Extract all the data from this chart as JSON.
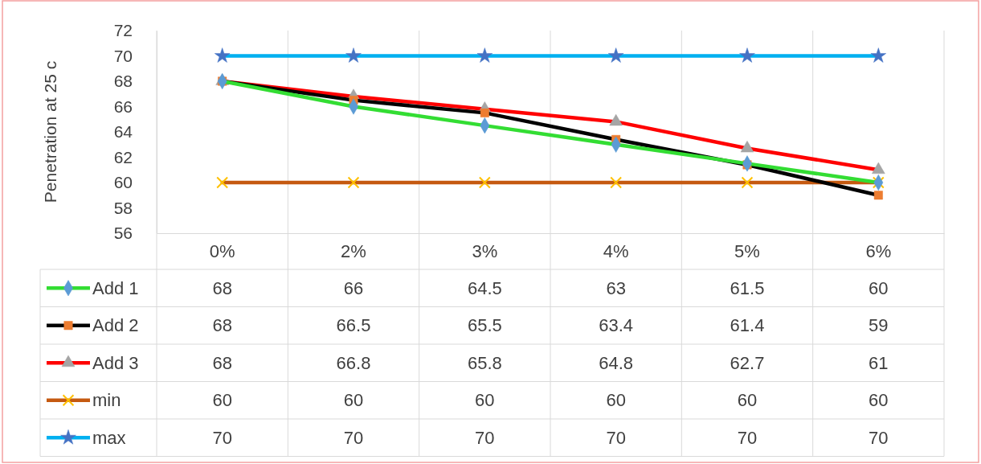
{
  "chart_data": {
    "type": "line",
    "ylabel": "Penetration at 25 c",
    "categories": [
      "0%",
      "2%",
      "3%",
      "4%",
      "5%",
      "6%"
    ],
    "ylim": [
      56,
      72
    ],
    "yticks": [
      56,
      58,
      60,
      62,
      64,
      66,
      68,
      70,
      72
    ],
    "grid": "x",
    "legend": "bottom",
    "data_labels": true,
    "series": [
      {
        "name": "Add 1",
        "color": "#33dd33",
        "marker": "diamond",
        "colors": [
          "#5b9bd5",
          "#5b9bd5",
          "#5b9bd5",
          "#5b9bd5",
          "#5b9bd5",
          "#5b9bd5"
        ],
        "values": [
          68,
          66,
          64.5,
          63,
          61.5,
          60
        ]
      },
      {
        "name": "Add 2",
        "color": "#000000",
        "marker": "square",
        "colors": [
          "#ed7d31",
          "#ed7d31",
          "#ed7d31",
          "#ed7d31",
          "#ed7d31",
          "#ed7d31"
        ],
        "values": [
          68,
          66.5,
          65.5,
          63.4,
          61.4,
          59
        ]
      },
      {
        "name": "Add 3",
        "color": "#ff0000",
        "marker": "triangle",
        "colors": [
          "#a5a5a5",
          "#a5a5a5",
          "#a5a5a5",
          "#a5a5a5",
          "#a5a5a5",
          "#a5a5a5"
        ],
        "values": [
          68,
          66.8,
          65.8,
          64.8,
          62.7,
          61
        ]
      },
      {
        "name": "min",
        "color": "#c55a11",
        "marker": "cross",
        "colors": [
          "#ffc000",
          "#ffc000",
          "#ffc000",
          "#ffc000",
          "#ffc000",
          "#ffc000"
        ],
        "values": [
          60,
          60,
          60,
          60,
          60,
          60
        ]
      },
      {
        "name": "max",
        "color": "#00b0f0",
        "marker": "star",
        "colors": [
          "#4472c4",
          "#4472c4",
          "#4472c4",
          "#4472c4",
          "#4472c4",
          "#4472c4"
        ],
        "values": [
          70,
          70,
          70,
          70,
          70,
          70
        ]
      }
    ]
  }
}
